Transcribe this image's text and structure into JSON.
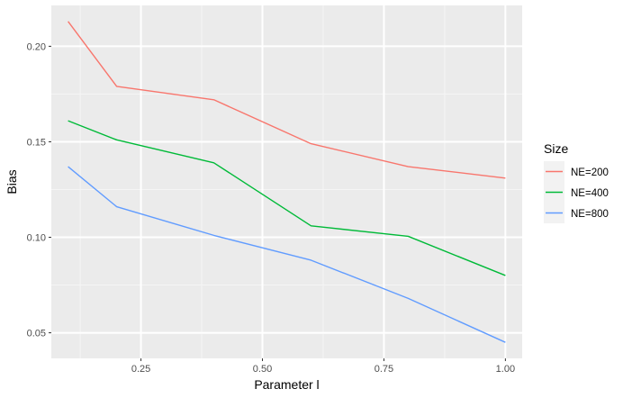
{
  "chart_data": {
    "type": "line",
    "title": "",
    "xlabel": "Parameter l",
    "ylabel": "Bias",
    "x": [
      0.1,
      0.2,
      0.4,
      0.6,
      0.8,
      1.0
    ],
    "series": [
      {
        "name": "NE=200",
        "color": "#F8766D",
        "values": [
          0.213,
          0.179,
          0.172,
          0.149,
          0.137,
          0.131
        ]
      },
      {
        "name": "NE=400",
        "color": "#00BA38",
        "values": [
          0.161,
          0.151,
          0.139,
          0.106,
          0.1005,
          0.08
        ]
      },
      {
        "name": "NE=800",
        "color": "#619CFF",
        "values": [
          0.137,
          0.116,
          0.101,
          0.088,
          0.068,
          0.045
        ]
      }
    ],
    "xlim": [
      0.0655,
      1.0345
    ],
    "ylim": [
      0.0366,
      0.2214
    ],
    "xticks": [
      0.25,
      0.5,
      0.75,
      1.0
    ],
    "xtick_labels": [
      "0.25",
      "0.50",
      "0.75",
      "1.00"
    ],
    "yticks": [
      0.05,
      0.1,
      0.15,
      0.2
    ],
    "ytick_labels": [
      "0.05",
      "0.10",
      "0.15",
      "0.20"
    ],
    "grid": true,
    "legend": {
      "title": "Size",
      "position": "right"
    },
    "colors": {
      "panel_background": "#EBEBEB",
      "grid_major": "#FFFFFF",
      "grid_minor": "#F5F5F5",
      "axis_text": "#4D4D4D",
      "tick": "#333333",
      "label": "#000000"
    }
  }
}
